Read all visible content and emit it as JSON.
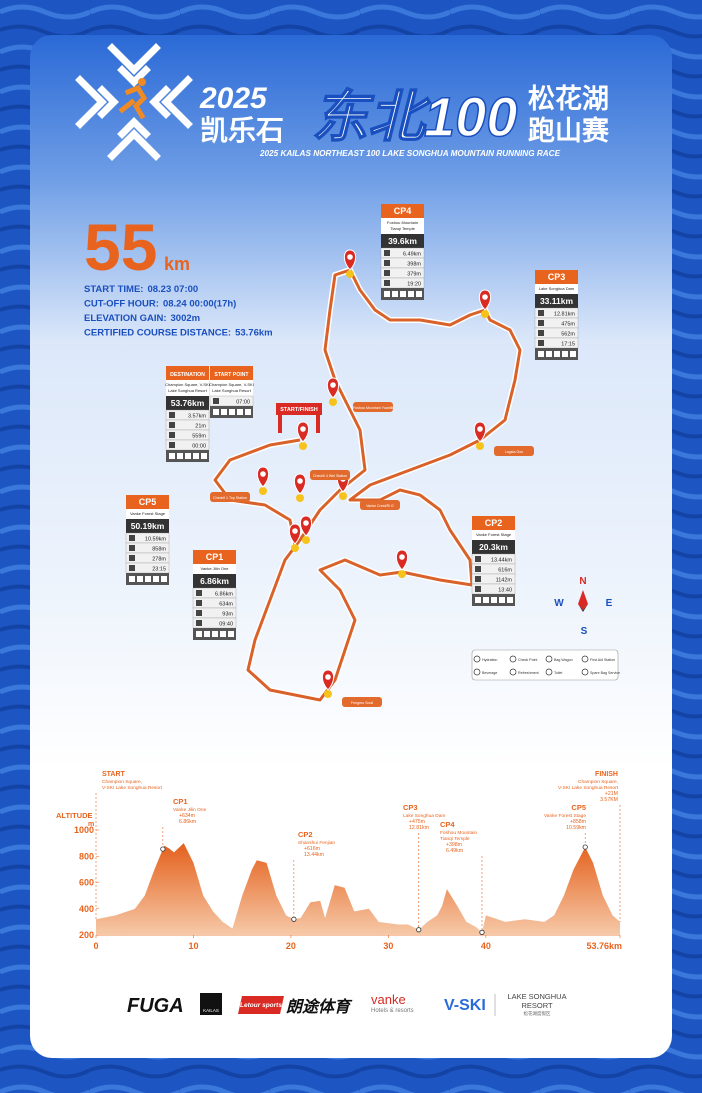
{
  "header": {
    "year": "2025",
    "brand_cn": "凯乐石",
    "race_cn": "东北100",
    "lake_cn": "松花湖",
    "type_cn": "跑山赛",
    "subtitle": "2025 KAILAS NORTHEAST 100 LAKE SONGHUA MOUNTAIN RUNNING RACE"
  },
  "distance": {
    "number": "55",
    "unit": "km"
  },
  "info": [
    {
      "label": "START TIME:",
      "value": "08.23  07:00"
    },
    {
      "label": "CUT-OFF HOUR:",
      "value": "08.24  00:00(17h)"
    },
    {
      "label": "ELEVATION GAIN:",
      "value": "3002m"
    },
    {
      "label": "CERTIFIED COURSE DISTANCE:",
      "value": "53.76km"
    }
  ],
  "checkpoints": [
    {
      "name": "CP4",
      "location": [
        "Foshou Mountain",
        "Tianqi Temple"
      ],
      "distance": "39.6km",
      "segment": "6.49km",
      "gain": "398m",
      "loss": "379m",
      "cutoff": "19:20"
    },
    {
      "name": "CP3",
      "location": [
        "Lake Songhua Dam"
      ],
      "distance": "33.11km",
      "segment": "12.81km",
      "gain": "475m",
      "loss": "562m",
      "cutoff": "17:15"
    },
    {
      "name": "CP2",
      "location": [
        "Vanke Forest Stage"
      ],
      "distance": "20.3km",
      "segment": "13.44km",
      "gain": "616m",
      "loss": "1142m",
      "cutoff": "13:40"
    },
    {
      "name": "CP1",
      "location": [
        "Vanke JiIin One"
      ],
      "distance": "6.86km",
      "segment": "6.86km",
      "gain": "634m",
      "loss": "93m",
      "cutoff": "09:40"
    },
    {
      "name": "CP5",
      "location": [
        "Vanke Forest Stage"
      ],
      "distance": "50.19km",
      "segment": "10.59km",
      "gain": "858m",
      "loss": "278m",
      "cutoff": "23:15"
    },
    {
      "name": "DESTINATION",
      "location": [
        "Champion Square, V-SKI",
        "Lake Songhua Resort"
      ],
      "distance": "53.76km",
      "segment": "3.57km",
      "gain": "21m",
      "loss": "559m",
      "cutoff": "00:00"
    },
    {
      "name": "START POINT",
      "location": [
        "Champion Square, V-SKI",
        "Lake Songhua Resort"
      ],
      "cutoff": "07:00"
    }
  ],
  "map": {
    "start_finish": "START/FINISH",
    "places": [
      "Foshou Mountain Yuanlili",
      "Lagsta Gou",
      "Vanke Crest/Ri G",
      "Checkfi 4 Wei Station",
      "Checkfi 1 Top Station",
      "Fengmu Souli"
    ],
    "compass": {
      "n": "N",
      "w": "W",
      "e": "E",
      "s": "S"
    },
    "legend": [
      "Hydration",
      "Beverage",
      "Check Point",
      "Refreshment",
      "Bag Wagon",
      "Toilet",
      "First Aid Station",
      "Spare Bag Service"
    ]
  },
  "elevation": {
    "axis_title": "ALTITUDE",
    "axis_unit": "m",
    "ylim": [
      200,
      1000
    ],
    "yticks": [
      200,
      400,
      600,
      800,
      1000
    ],
    "xlim": [
      0,
      53.76
    ],
    "xticks": [
      0,
      10,
      20,
      30,
      40,
      {
        "value": 53.76,
        "label": "53.76km"
      }
    ],
    "profile": {
      "distance": [
        0,
        2,
        4,
        5,
        6,
        7,
        7.5,
        8,
        9,
        10,
        11,
        12,
        13,
        14,
        15,
        16,
        16.5,
        17.5,
        18.5,
        19.5,
        20.3,
        21,
        22,
        23,
        23.5,
        24.5,
        25.5,
        26.5,
        28,
        29,
        31,
        32,
        33.11,
        34,
        35,
        35.5,
        36,
        37,
        38,
        39,
        39.6,
        40,
        42,
        44,
        46,
        47,
        48,
        49,
        50.19,
        51,
        52,
        53,
        53.76
      ],
      "altitude": [
        320,
        350,
        400,
        500,
        700,
        880,
        860,
        830,
        900,
        750,
        500,
        380,
        300,
        250,
        500,
        700,
        770,
        750,
        500,
        350,
        320,
        330,
        450,
        460,
        330,
        580,
        560,
        380,
        400,
        300,
        280,
        280,
        240,
        300,
        350,
        420,
        550,
        430,
        300,
        260,
        220,
        350,
        300,
        320,
        300,
        350,
        500,
        700,
        870,
        750,
        500,
        350,
        300
      ]
    },
    "annotations": [
      {
        "name": "START",
        "place": [
          "Champion Square,",
          "V-SKI Lake Songhua Resort"
        ],
        "x": 0
      },
      {
        "name": "CP1",
        "place": [
          "Vanke Jilin One"
        ],
        "gain": "+634m",
        "distance": "6.86km",
        "x": 6.86
      },
      {
        "name": "CP2",
        "place": [
          "Shanshui Fenjian"
        ],
        "gain": "+616m",
        "distance": "13.44km",
        "x": 20.3
      },
      {
        "name": "CP3",
        "place": [
          "Lake Songhua Dam"
        ],
        "gain": "+475m",
        "distance": "12.81km",
        "x": 33.11
      },
      {
        "name": "CP4",
        "place": [
          "Foshou Mountain",
          "Tianqi Temple"
        ],
        "gain": "+398m",
        "distance": "6.49km",
        "x": 39.6
      },
      {
        "name": "CP5",
        "place": [
          "Vanke Forest Stage"
        ],
        "gain": "+858m",
        "distance": "10.59km",
        "x": 50.19
      },
      {
        "name": "FINISH",
        "place": [
          "Champion Square,",
          "V-SKI Lake Songhua Resort"
        ],
        "gain": "+21M",
        "distance": "3.57KM",
        "x": 53.76
      }
    ]
  },
  "sponsors": {
    "fuga": "FUGA",
    "kailas": "KAILAS",
    "letour": "Letour sports",
    "langtu": "朗途体育",
    "vanke": "vanke",
    "vanke_sub": "Hotels & resorts",
    "vski": "V-SKI",
    "resort": "LAKE SONGHUA",
    "resort2": "RESORT",
    "resort_cn": "松花湖度假区"
  }
}
